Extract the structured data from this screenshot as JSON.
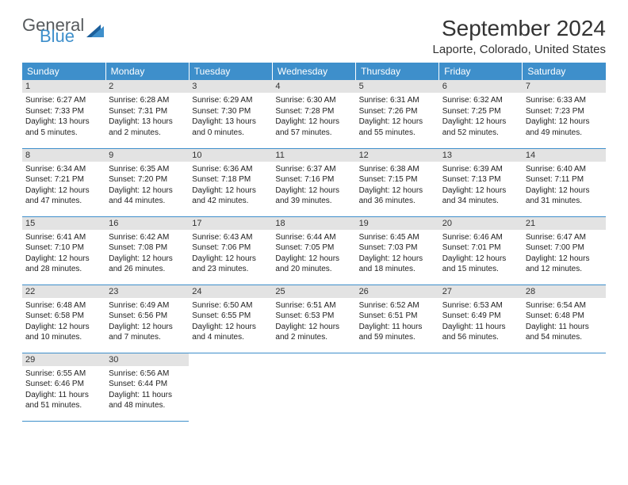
{
  "logo": {
    "general": "General",
    "blue": "Blue"
  },
  "title": "September 2024",
  "location": "Laporte, Colorado, United States",
  "colors": {
    "header_bg": "#3e8fcb",
    "header_text": "#ffffff",
    "daynum_bg": "#e3e3e3",
    "row_border": "#3e8fcb",
    "logo_gray": "#565a5d",
    "logo_blue": "#3e8fcb"
  },
  "typography": {
    "title_fontsize": 28,
    "location_fontsize": 15,
    "weekday_fontsize": 12,
    "daynum_fontsize": 11,
    "info_fontsize": 10
  },
  "weekdays": [
    "Sunday",
    "Monday",
    "Tuesday",
    "Wednesday",
    "Thursday",
    "Friday",
    "Saturday"
  ],
  "labels": {
    "sunrise": "Sunrise:",
    "sunset": "Sunset:",
    "daylight": "Daylight:"
  },
  "days": [
    {
      "n": 1,
      "sunrise": "6:27 AM",
      "sunset": "7:33 PM",
      "daylight": "13 hours and 5 minutes."
    },
    {
      "n": 2,
      "sunrise": "6:28 AM",
      "sunset": "7:31 PM",
      "daylight": "13 hours and 2 minutes."
    },
    {
      "n": 3,
      "sunrise": "6:29 AM",
      "sunset": "7:30 PM",
      "daylight": "13 hours and 0 minutes."
    },
    {
      "n": 4,
      "sunrise": "6:30 AM",
      "sunset": "7:28 PM",
      "daylight": "12 hours and 57 minutes."
    },
    {
      "n": 5,
      "sunrise": "6:31 AM",
      "sunset": "7:26 PM",
      "daylight": "12 hours and 55 minutes."
    },
    {
      "n": 6,
      "sunrise": "6:32 AM",
      "sunset": "7:25 PM",
      "daylight": "12 hours and 52 minutes."
    },
    {
      "n": 7,
      "sunrise": "6:33 AM",
      "sunset": "7:23 PM",
      "daylight": "12 hours and 49 minutes."
    },
    {
      "n": 8,
      "sunrise": "6:34 AM",
      "sunset": "7:21 PM",
      "daylight": "12 hours and 47 minutes."
    },
    {
      "n": 9,
      "sunrise": "6:35 AM",
      "sunset": "7:20 PM",
      "daylight": "12 hours and 44 minutes."
    },
    {
      "n": 10,
      "sunrise": "6:36 AM",
      "sunset": "7:18 PM",
      "daylight": "12 hours and 42 minutes."
    },
    {
      "n": 11,
      "sunrise": "6:37 AM",
      "sunset": "7:16 PM",
      "daylight": "12 hours and 39 minutes."
    },
    {
      "n": 12,
      "sunrise": "6:38 AM",
      "sunset": "7:15 PM",
      "daylight": "12 hours and 36 minutes."
    },
    {
      "n": 13,
      "sunrise": "6:39 AM",
      "sunset": "7:13 PM",
      "daylight": "12 hours and 34 minutes."
    },
    {
      "n": 14,
      "sunrise": "6:40 AM",
      "sunset": "7:11 PM",
      "daylight": "12 hours and 31 minutes."
    },
    {
      "n": 15,
      "sunrise": "6:41 AM",
      "sunset": "7:10 PM",
      "daylight": "12 hours and 28 minutes."
    },
    {
      "n": 16,
      "sunrise": "6:42 AM",
      "sunset": "7:08 PM",
      "daylight": "12 hours and 26 minutes."
    },
    {
      "n": 17,
      "sunrise": "6:43 AM",
      "sunset": "7:06 PM",
      "daylight": "12 hours and 23 minutes."
    },
    {
      "n": 18,
      "sunrise": "6:44 AM",
      "sunset": "7:05 PM",
      "daylight": "12 hours and 20 minutes."
    },
    {
      "n": 19,
      "sunrise": "6:45 AM",
      "sunset": "7:03 PM",
      "daylight": "12 hours and 18 minutes."
    },
    {
      "n": 20,
      "sunrise": "6:46 AM",
      "sunset": "7:01 PM",
      "daylight": "12 hours and 15 minutes."
    },
    {
      "n": 21,
      "sunrise": "6:47 AM",
      "sunset": "7:00 PM",
      "daylight": "12 hours and 12 minutes."
    },
    {
      "n": 22,
      "sunrise": "6:48 AM",
      "sunset": "6:58 PM",
      "daylight": "12 hours and 10 minutes."
    },
    {
      "n": 23,
      "sunrise": "6:49 AM",
      "sunset": "6:56 PM",
      "daylight": "12 hours and 7 minutes."
    },
    {
      "n": 24,
      "sunrise": "6:50 AM",
      "sunset": "6:55 PM",
      "daylight": "12 hours and 4 minutes."
    },
    {
      "n": 25,
      "sunrise": "6:51 AM",
      "sunset": "6:53 PM",
      "daylight": "12 hours and 2 minutes."
    },
    {
      "n": 26,
      "sunrise": "6:52 AM",
      "sunset": "6:51 PM",
      "daylight": "11 hours and 59 minutes."
    },
    {
      "n": 27,
      "sunrise": "6:53 AM",
      "sunset": "6:49 PM",
      "daylight": "11 hours and 56 minutes."
    },
    {
      "n": 28,
      "sunrise": "6:54 AM",
      "sunset": "6:48 PM",
      "daylight": "11 hours and 54 minutes."
    },
    {
      "n": 29,
      "sunrise": "6:55 AM",
      "sunset": "6:46 PM",
      "daylight": "11 hours and 51 minutes."
    },
    {
      "n": 30,
      "sunrise": "6:56 AM",
      "sunset": "6:44 PM",
      "daylight": "11 hours and 48 minutes."
    }
  ]
}
